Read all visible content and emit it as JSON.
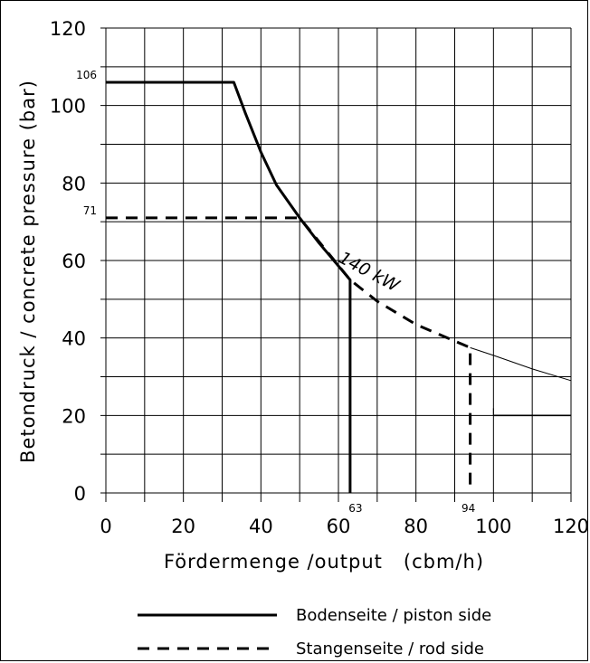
{
  "chart_data": {
    "type": "line",
    "xlabel": "Fördermenge /output   (cbm/h)",
    "ylabel": "Betondruck / concrete pressure (bar)",
    "xlim": [
      0,
      120
    ],
    "ylim": [
      0,
      120
    ],
    "x_ticks": [
      "0",
      "20",
      "40",
      "60",
      "80",
      "100",
      "120"
    ],
    "y_ticks": [
      "0",
      "20",
      "40",
      "60",
      "80",
      "100",
      "120"
    ],
    "grid": true,
    "power_label": "140 kW",
    "annotations": {
      "y_106": "106",
      "y_71": "71",
      "x_63": "63",
      "x_94": "94"
    },
    "series": [
      {
        "name": "Bodenseite / piston side",
        "style": "solid",
        "points": [
          [
            0,
            106
          ],
          [
            33,
            106
          ],
          [
            36,
            98
          ],
          [
            40,
            88
          ],
          [
            44,
            79.5
          ],
          [
            50,
            71
          ],
          [
            55,
            64.5
          ],
          [
            63,
            55
          ],
          [
            63,
            0
          ]
        ]
      },
      {
        "name": "Stangenseite / rod side",
        "style": "dashed",
        "points": [
          [
            0,
            71
          ],
          [
            50,
            71
          ],
          [
            63,
            55
          ],
          [
            70,
            49.5
          ],
          [
            80,
            43.5
          ],
          [
            94,
            37.5
          ],
          [
            94,
            0
          ]
        ]
      },
      {
        "style": "thin",
        "points": [
          [
            94,
            37.5
          ],
          [
            100,
            35.5
          ],
          [
            110,
            32
          ],
          [
            120,
            29
          ]
        ]
      }
    ],
    "extra_line": {
      "x": [
        100,
        120
      ],
      "y": 20
    }
  }
}
